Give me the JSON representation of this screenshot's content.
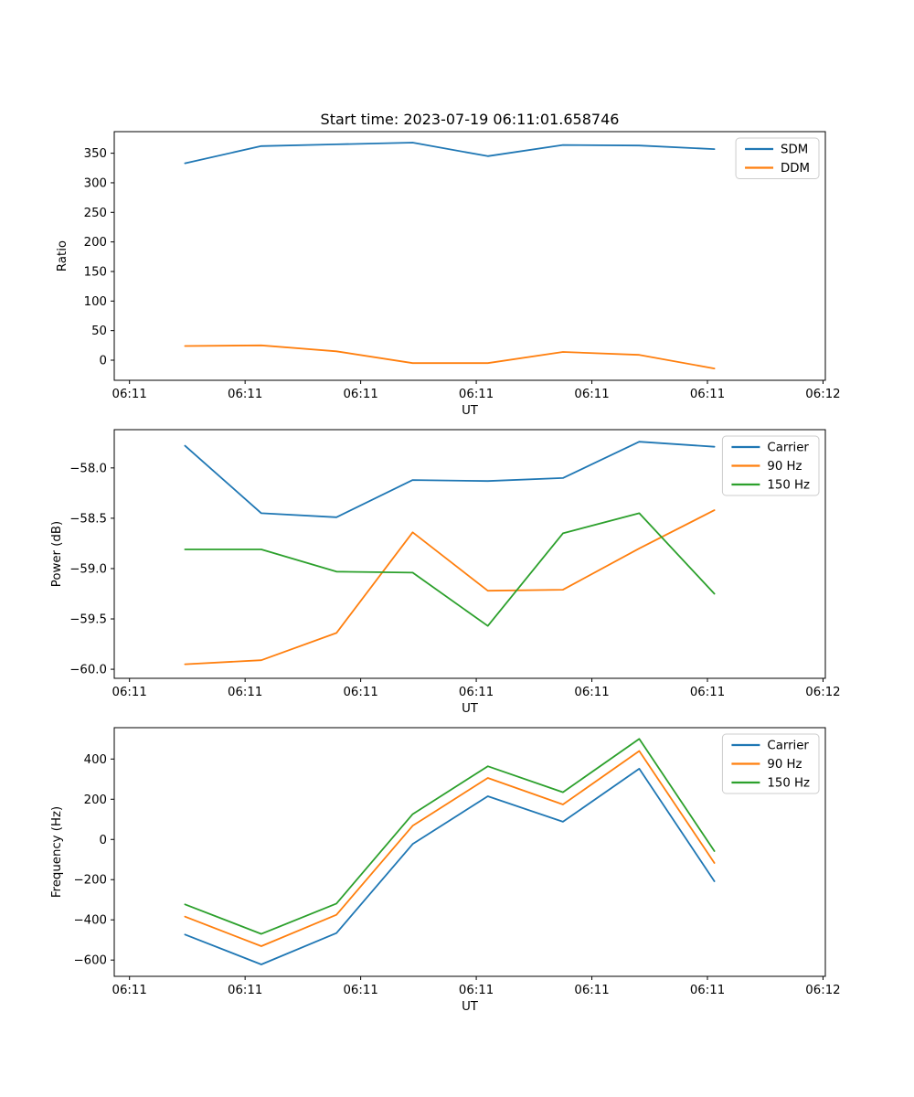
{
  "figure": {
    "title": "Start time: 2023-07-19 06:11:01.658746",
    "background": "#ffffff"
  },
  "colors": {
    "blue": "#1f77b4",
    "orange": "#ff7f0e",
    "green": "#2ca02c",
    "spine": "#000000",
    "legend_border": "#cccccc",
    "text": "#000000"
  },
  "x_axis": {
    "label": "UT",
    "tick_seconds_after_061100": [
      0,
      10,
      20,
      30,
      40,
      50,
      60
    ],
    "tick_labels": [
      "06:11",
      "06:11",
      "06:11",
      "06:11",
      "06:11",
      "06:11",
      "06:12"
    ],
    "xlim_seconds": [
      -1.32,
      60.2
    ]
  },
  "chart_data": [
    {
      "type": "line",
      "title": "Start time: 2023-07-19 06:11:01.658746",
      "xlabel": "UT",
      "ylabel": "Ratio",
      "x_seconds": [
        4.8,
        11.4,
        17.9,
        24.5,
        31.0,
        37.5,
        44.1,
        50.6
      ],
      "series": [
        {
          "name": "SDM",
          "color": "#1f77b4",
          "values": [
            333,
            362,
            365,
            368,
            345,
            364,
            363,
            357
          ]
        },
        {
          "name": "DDM",
          "color": "#ff7f0e",
          "values": [
            24,
            25,
            15,
            -5,
            -5,
            14,
            9,
            -14
          ]
        }
      ],
      "ylim": [
        -34,
        386.5
      ],
      "yticks": [
        0,
        50,
        100,
        150,
        200,
        250,
        300,
        350
      ],
      "ytick_decimals": 0,
      "grid": false,
      "legend": {
        "position": "upper right",
        "entries": [
          "SDM",
          "DDM"
        ]
      }
    },
    {
      "type": "line",
      "title": "",
      "xlabel": "UT",
      "ylabel": "Power (dB)",
      "x_seconds": [
        4.8,
        11.4,
        17.9,
        24.5,
        31.0,
        37.5,
        44.1,
        50.6
      ],
      "series": [
        {
          "name": "Carrier",
          "color": "#1f77b4",
          "values": [
            -57.78,
            -58.45,
            -58.49,
            -58.12,
            -58.13,
            -58.1,
            -57.74,
            -57.79
          ]
        },
        {
          "name": "90 Hz",
          "color": "#ff7f0e",
          "values": [
            -59.95,
            -59.91,
            -59.64,
            -58.64,
            -59.22,
            -59.21,
            -58.8,
            -58.42
          ]
        },
        {
          "name": "150 Hz",
          "color": "#2ca02c",
          "values": [
            -58.81,
            -58.81,
            -59.03,
            -59.04,
            -59.57,
            -58.65,
            -58.45,
            -59.25
          ]
        }
      ],
      "ylim": [
        -60.09,
        -57.62
      ],
      "yticks": [
        -60.0,
        -59.5,
        -59.0,
        -58.5,
        -58.0
      ],
      "ytick_decimals": 1,
      "grid": false,
      "legend": {
        "position": "upper right",
        "entries": [
          "Carrier",
          "90 Hz",
          "150 Hz"
        ]
      }
    },
    {
      "type": "line",
      "title": "",
      "xlabel": "UT",
      "ylabel": "Frequency (Hz)",
      "x_seconds": [
        4.8,
        11.4,
        17.9,
        24.5,
        31.0,
        37.5,
        44.1,
        50.6
      ],
      "series": [
        {
          "name": "Carrier",
          "color": "#1f77b4",
          "values": [
            -473,
            -622,
            -466,
            -23,
            215,
            88,
            352,
            -208
          ]
        },
        {
          "name": "90 Hz",
          "color": "#ff7f0e",
          "values": [
            -384,
            -531,
            -375,
            68,
            306,
            174,
            440,
            -117
          ]
        },
        {
          "name": "150 Hz",
          "color": "#2ca02c",
          "values": [
            -323,
            -470,
            -319,
            126,
            364,
            235,
            500,
            -58
          ]
        }
      ],
      "ylim": [
        -681,
        556
      ],
      "yticks": [
        -600,
        -400,
        -200,
        0,
        200,
        400
      ],
      "ytick_decimals": 0,
      "grid": false,
      "legend": {
        "position": "upper right",
        "entries": [
          "Carrier",
          "90 Hz",
          "150 Hz"
        ]
      }
    }
  ]
}
